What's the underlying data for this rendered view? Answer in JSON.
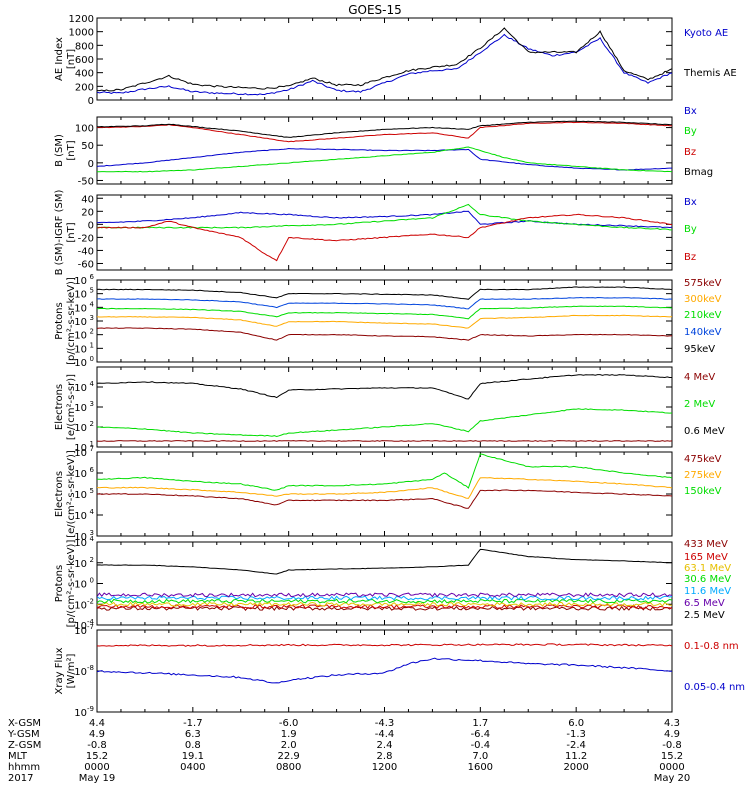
{
  "title": "GOES-15",
  "colors": {
    "black": "#000000",
    "blue": "#0000cc",
    "red": "#cc0000",
    "green": "#00dd00",
    "darkred": "#8b0000",
    "orange": "#ffaa00",
    "mblue": "#0044dd",
    "yellow": "#e6c000",
    "cyan": "#00aaff",
    "purple": "#6600aa"
  },
  "footer": {
    "rows": [
      {
        "label": "X-GSM",
        "values": [
          "4.4",
          "-1.7",
          "-6.0",
          "-4.3",
          "1.7",
          "6.0",
          "4.3"
        ]
      },
      {
        "label": "Y-GSM",
        "values": [
          "4.9",
          "6.3",
          "1.9",
          "-4.4",
          "-6.4",
          "-1.3",
          "4.9"
        ]
      },
      {
        "label": "Z-GSM",
        "values": [
          "-0.8",
          "0.8",
          "2.0",
          "2.4",
          "-0.4",
          "-2.4",
          "-0.8"
        ]
      },
      {
        "label": "MLT",
        "values": [
          "15.2",
          "19.1",
          "22.9",
          "2.8",
          "7.0",
          "11.2",
          "15.2"
        ]
      },
      {
        "label": "hhmm",
        "values": [
          "0000",
          "0400",
          "0800",
          "1200",
          "1600",
          "2000",
          "0000"
        ]
      }
    ],
    "year": "2017",
    "start_date": "May 19",
    "end_date": "May 20"
  },
  "chart_data": [
    {
      "type": "line",
      "ylabel": "AE Index",
      "yunit": "[nT]",
      "ylim": [
        0,
        1200
      ],
      "log": false,
      "yticks": [
        0,
        200,
        400,
        600,
        800,
        1000,
        1200
      ],
      "series": [
        {
          "name": "Kyoto AE",
          "color": "blue",
          "x": [
            0,
            1,
            2,
            3,
            4,
            5,
            6,
            7,
            8,
            9,
            10,
            11,
            12,
            13,
            14,
            15,
            16,
            17,
            18,
            19,
            20,
            21,
            22,
            23,
            24
          ],
          "y": [
            110,
            100,
            160,
            200,
            120,
            100,
            90,
            80,
            150,
            280,
            140,
            120,
            250,
            380,
            430,
            450,
            700,
            950,
            750,
            650,
            700,
            900,
            400,
            250,
            400
          ]
        },
        {
          "name": "Themis AE",
          "color": "black",
          "x": [
            0,
            1,
            2,
            3,
            4,
            5,
            6,
            7,
            8,
            9,
            10,
            11,
            12,
            13,
            14,
            15,
            16,
            17,
            18,
            19,
            20,
            21,
            22,
            23,
            24
          ],
          "y": [
            130,
            150,
            250,
            350,
            230,
            200,
            180,
            170,
            200,
            320,
            220,
            220,
            330,
            430,
            480,
            520,
            760,
            1050,
            700,
            700,
            700,
            1000,
            430,
            300,
            450
          ]
        }
      ]
    },
    {
      "type": "line",
      "ylabel": "B (SM)",
      "yunit": "[nT]",
      "ylim": [
        -60,
        130
      ],
      "log": false,
      "yticks": [
        -50,
        0,
        50,
        100
      ],
      "series": [
        {
          "name": "Bx",
          "color": "blue",
          "x": [
            0,
            2,
            4,
            6,
            8,
            10,
            12,
            14,
            15.5,
            16,
            18,
            20,
            22,
            24
          ],
          "y": [
            -10,
            0,
            15,
            30,
            40,
            38,
            35,
            35,
            38,
            10,
            -5,
            -15,
            -20,
            -15
          ]
        },
        {
          "name": "By",
          "color": "green",
          "x": [
            0,
            2,
            4,
            6,
            8,
            10,
            12,
            14,
            15.5,
            16,
            17,
            18,
            20,
            22,
            24
          ],
          "y": [
            -25,
            -25,
            -20,
            -10,
            0,
            10,
            20,
            30,
            45,
            35,
            15,
            0,
            -10,
            -20,
            -25
          ]
        },
        {
          "name": "Bz",
          "color": "red",
          "x": [
            0,
            2,
            3,
            4,
            6,
            8,
            10,
            12,
            14,
            15.5,
            16,
            18,
            20,
            22,
            24
          ],
          "y": [
            100,
            103,
            108,
            100,
            80,
            60,
            70,
            80,
            85,
            70,
            100,
            112,
            115,
            112,
            105
          ]
        },
        {
          "name": "Bmag",
          "color": "black",
          "x": [
            0,
            2,
            3,
            4,
            6,
            8,
            10,
            12,
            14,
            15.5,
            16,
            18,
            20,
            22,
            24
          ],
          "y": [
            102,
            105,
            110,
            103,
            90,
            72,
            85,
            95,
            100,
            95,
            105,
            115,
            118,
            115,
            108
          ]
        }
      ]
    },
    {
      "type": "line",
      "ylabel": "B (SM)-IGRF (SM)",
      "yunit": "[nT]",
      "ylim": [
        -70,
        45
      ],
      "log": false,
      "yticks": [
        -60,
        -40,
        -20,
        0,
        20,
        40
      ],
      "series": [
        {
          "name": "Bx",
          "color": "blue",
          "x": [
            0,
            2,
            4,
            6,
            8,
            10,
            12,
            14,
            15.5,
            16,
            18,
            20,
            22,
            24
          ],
          "y": [
            2,
            5,
            10,
            18,
            15,
            10,
            12,
            15,
            20,
            0,
            5,
            0,
            -2,
            -5
          ]
        },
        {
          "name": "By",
          "color": "green",
          "x": [
            0,
            2,
            4,
            6,
            8,
            10,
            12,
            14,
            15.5,
            16,
            18,
            20,
            22,
            24
          ],
          "y": [
            -5,
            -5,
            -5,
            -5,
            -2,
            0,
            5,
            10,
            30,
            15,
            5,
            0,
            -5,
            -8
          ]
        },
        {
          "name": "Bz",
          "color": "red",
          "x": [
            0,
            2,
            3,
            4,
            6,
            7,
            7.5,
            8,
            10,
            12,
            14,
            15.5,
            16,
            18,
            20,
            22,
            24
          ],
          "y": [
            -5,
            -5,
            5,
            -5,
            -20,
            -45,
            -55,
            -20,
            -25,
            -20,
            -15,
            -20,
            -5,
            10,
            15,
            10,
            0
          ]
        }
      ]
    },
    {
      "type": "line",
      "ylabel": "Protons",
      "yunit": "[p/(cm²-s-sr-keV)]",
      "ylim": [
        1,
        1000000
      ],
      "log": true,
      "yticks": [
        1,
        10,
        100,
        1000,
        10000,
        100000,
        1000000
      ],
      "series": [
        {
          "name": "575keV",
          "color": "darkred",
          "x": [
            0,
            2,
            4,
            6,
            7.5,
            8,
            10,
            12,
            14,
            15.5,
            16,
            18,
            20,
            22,
            24
          ],
          "y": [
            300,
            300,
            250,
            150,
            40,
            100,
            100,
            80,
            70,
            40,
            100,
            80,
            100,
            100,
            80
          ]
        },
        {
          "name": "300keV",
          "color": "orange",
          "x": [
            0,
            2,
            4,
            6,
            7.5,
            8,
            10,
            12,
            14,
            15.5,
            16,
            18,
            20,
            22,
            24
          ],
          "y": [
            2000,
            2000,
            1800,
            1200,
            400,
            900,
            900,
            700,
            600,
            300,
            1500,
            1800,
            2500,
            2500,
            2000
          ]
        },
        {
          "name": "210keV",
          "color": "green",
          "x": [
            0,
            2,
            4,
            6,
            7.5,
            8,
            10,
            12,
            14,
            15.5,
            16,
            18,
            20,
            22,
            24
          ],
          "y": [
            8000,
            8000,
            7000,
            5000,
            2000,
            4000,
            4000,
            3500,
            3000,
            1500,
            8000,
            9000,
            12000,
            12000,
            9000
          ]
        },
        {
          "name": "140keV",
          "color": "mblue",
          "x": [
            0,
            2,
            4,
            6,
            7.5,
            8,
            10,
            12,
            14,
            15.5,
            16,
            18,
            20,
            22,
            24
          ],
          "y": [
            40000,
            40000,
            35000,
            25000,
            10000,
            20000,
            20000,
            18000,
            15000,
            8000,
            40000,
            40000,
            50000,
            50000,
            40000
          ]
        },
        {
          "name": "95keV",
          "color": "black",
          "x": [
            0,
            2,
            4,
            6,
            7.5,
            8,
            10,
            12,
            14,
            15.5,
            16,
            18,
            20,
            22,
            24
          ],
          "y": [
            200000,
            200000,
            180000,
            120000,
            50000,
            100000,
            100000,
            90000,
            80000,
            40000,
            200000,
            200000,
            300000,
            300000,
            200000
          ]
        }
      ]
    },
    {
      "type": "line",
      "ylabel": "Electrons",
      "yunit": "[e/(cm²-s-sr)]",
      "ylim": [
        10,
        100000
      ],
      "log": true,
      "yticks": [
        10,
        100,
        1000,
        10000
      ],
      "series": [
        {
          "name": "4 MeV",
          "color": "darkred",
          "x": [
            0,
            24
          ],
          "y": [
            20,
            20
          ]
        },
        {
          "name": "2 MeV",
          "color": "green",
          "x": [
            0,
            2,
            4,
            6,
            7.5,
            8,
            10,
            12,
            14,
            15.5,
            16,
            18,
            20,
            22,
            24
          ],
          "y": [
            100,
            80,
            50,
            40,
            35,
            50,
            70,
            100,
            150,
            60,
            200,
            400,
            800,
            700,
            500
          ]
        },
        {
          "name": "0.6 MeV",
          "color": "black",
          "x": [
            0,
            2,
            4,
            6,
            7.5,
            8,
            10,
            12,
            14,
            15.5,
            16,
            18,
            20,
            22,
            24
          ],
          "y": [
            15000,
            18000,
            15000,
            8000,
            3000,
            7000,
            8000,
            9000,
            9000,
            2500,
            15000,
            25000,
            40000,
            40000,
            30000
          ]
        }
      ]
    },
    {
      "type": "line",
      "ylabel": "Electrons",
      "yunit": "[e/(cm²-s-sr-keV)]",
      "ylim": [
        1000,
        10000000
      ],
      "log": true,
      "yticks": [
        1000,
        10000,
        100000,
        1000000,
        10000000
      ],
      "series": [
        {
          "name": "475keV",
          "color": "darkred",
          "x": [
            0,
            2,
            4,
            6,
            7.5,
            8,
            10,
            12,
            14,
            15.5,
            16,
            18,
            20,
            22,
            24
          ],
          "y": [
            100000,
            100000,
            80000,
            60000,
            30000,
            50000,
            50000,
            50000,
            60000,
            20000,
            150000,
            150000,
            120000,
            100000,
            80000
          ]
        },
        {
          "name": "275keV",
          "color": "orange",
          "x": [
            0,
            2,
            4,
            6,
            7.5,
            8,
            10,
            12,
            14,
            15.5,
            16,
            18,
            20,
            22,
            24
          ],
          "y": [
            200000,
            200000,
            160000,
            120000,
            80000,
            100000,
            100000,
            120000,
            200000,
            60000,
            600000,
            500000,
            400000,
            300000,
            200000
          ]
        },
        {
          "name": "150keV",
          "color": "green",
          "x": [
            0,
            2,
            4,
            6,
            7.5,
            8,
            10,
            12,
            14,
            14.5,
            15.5,
            16,
            18,
            20,
            22,
            24
          ],
          "y": [
            500000,
            600000,
            400000,
            300000,
            150000,
            250000,
            250000,
            300000,
            500000,
            1000000,
            200000,
            8000000,
            2000000,
            2000000,
            1000000,
            600000
          ]
        }
      ]
    },
    {
      "type": "line",
      "ylabel": "Protons",
      "yunit": "[p/(cm²-s-sr-keV)]",
      "ylim": [
        0.0001,
        10000
      ],
      "log": true,
      "yticks": [
        0.0001,
        0.01,
        1,
        100,
        10000
      ],
      "series": [
        {
          "name": "433 MeV",
          "color": "darkred",
          "x": [
            0,
            24
          ],
          "y": [
            0.004,
            0.004
          ]
        },
        {
          "name": "165 MeV",
          "color": "red",
          "x": [
            0,
            24
          ],
          "y": [
            0.006,
            0.006
          ]
        },
        {
          "name": "63.1 MeV",
          "color": "yellow",
          "x": [
            0,
            24
          ],
          "y": [
            0.01,
            0.01
          ]
        },
        {
          "name": "30.6 MeV",
          "color": "green",
          "x": [
            0,
            24
          ],
          "y": [
            0.02,
            0.02
          ]
        },
        {
          "name": "11.6 MeV",
          "color": "cyan",
          "x": [
            0,
            24
          ],
          "y": [
            0.04,
            0.04
          ]
        },
        {
          "name": "6.5 MeV",
          "color": "purple",
          "x": [
            0,
            24
          ],
          "y": [
            0.08,
            0.08
          ]
        },
        {
          "name": "2.5 MeV",
          "color": "black",
          "x": [
            0,
            2,
            4,
            6,
            7.5,
            8,
            10,
            12,
            14,
            15.5,
            16,
            18,
            20,
            22,
            24
          ],
          "y": [
            60,
            60,
            40,
            20,
            8,
            20,
            25,
            30,
            40,
            60,
            2000,
            400,
            200,
            150,
            100
          ]
        }
      ]
    },
    {
      "type": "line",
      "ylabel": "Xray Flux",
      "yunit": "[W/m²]",
      "ylim": [
        1e-09,
        1e-07
      ],
      "log": true,
      "yticks": [
        1e-09,
        1e-08,
        1e-07
      ],
      "series": [
        {
          "name": "0.1-0.8 nm",
          "color": "red",
          "x": [
            0,
            4,
            8,
            12,
            16,
            20,
            24
          ],
          "y": [
            4.2e-08,
            4.2e-08,
            4.3e-08,
            4.3e-08,
            4.4e-08,
            4.4e-08,
            4.2e-08
          ]
        },
        {
          "name": "0.05-0.4 nm",
          "color": "blue",
          "x": [
            0,
            2,
            4,
            6,
            7.5,
            8,
            10,
            12,
            13,
            14,
            16,
            18,
            20,
            22,
            24
          ],
          "y": [
            1e-08,
            9e-09,
            8e-09,
            7e-09,
            5e-09,
            6e-09,
            8e-09,
            9e-09,
            1.5e-08,
            2e-08,
            1.8e-08,
            1.5e-08,
            1.4e-08,
            1.2e-08,
            1e-08
          ]
        }
      ]
    }
  ]
}
